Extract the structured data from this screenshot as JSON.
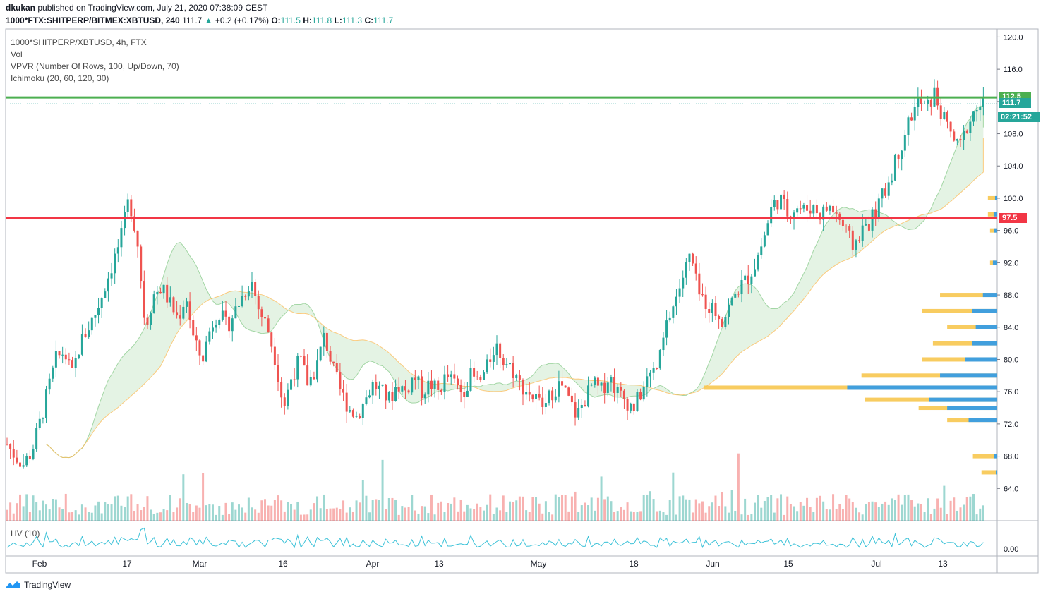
{
  "header": {
    "publisher": "dkukan",
    "published_text": "published on TradingView.com, July 21, 2020 07:38:09 CEST",
    "symbol": "1000*FTX:SHITPERP/BITMEX:XBTUSD, 240",
    "last": "111.7",
    "change": "+0.2 (+0.17%)",
    "o_label": "O:",
    "o_value": "111.5",
    "h_label": "H:",
    "h_value": "111.8",
    "l_label": "L:",
    "l_value": "111.3",
    "c_label": "C:",
    "c_value": "111.7"
  },
  "legend": {
    "title": "1000*SHITPERP/XBTUSD, 4h, FTX",
    "vol": "Vol",
    "vpvr": "VPVR (Number Of Rows, 100, Up/Down, 70)",
    "ichimoku": "Ichimoku (20, 60, 120, 30)"
  },
  "hv_label": "HV (10)",
  "price_tags": {
    "green_level": "112.5",
    "last_price": "111.7",
    "countdown": "02:21:52",
    "red_level": "97.5"
  },
  "colors": {
    "up": "#26a69a",
    "down": "#ef5350",
    "green_line": "#4caf50",
    "red_line": "#f23645",
    "countdown_bg": "#26a69a",
    "hv_line": "#3cc2d8",
    "vp_up": "#2196f3",
    "vp_down": "#f7c344"
  },
  "footer": {
    "brand": "TradingView"
  },
  "chart_data": {
    "type": "candlestick",
    "y_axis": {
      "ticks": [
        "120.0",
        "116.0",
        "112.0",
        "108.0",
        "104.0",
        "100.0",
        "96.0",
        "92.0",
        "88.0",
        "84.0",
        "80.0",
        "76.0",
        "72.0",
        "68.0",
        "64.0"
      ],
      "range": [
        60.0,
        121.0
      ]
    },
    "hv_axis": {
      "ticks": [
        "0.00"
      ]
    },
    "x_axis": {
      "ticks": [
        "Feb",
        "17",
        "Mar",
        "16",
        "Apr",
        "13",
        "May",
        "18",
        "Jun",
        "15",
        "Jul",
        "13"
      ]
    },
    "horizontal_levels": [
      {
        "value": 112.5,
        "color": "#4caf50"
      },
      {
        "value": 97.5,
        "color": "#f23645"
      }
    ],
    "price_path": [
      [
        0,
        69.5
      ],
      [
        1,
        68.0
      ],
      [
        2,
        67.0
      ],
      [
        3,
        68.5
      ],
      [
        4,
        72
      ],
      [
        5,
        76
      ],
      [
        6,
        80
      ],
      [
        7,
        81
      ],
      [
        8,
        78
      ],
      [
        9,
        82
      ],
      [
        10,
        84
      ],
      [
        11,
        86
      ],
      [
        12,
        89
      ],
      [
        13,
        92
      ],
      [
        14,
        95
      ],
      [
        15,
        100
      ],
      [
        16,
        95
      ],
      [
        17,
        84
      ],
      [
        18,
        88
      ],
      [
        19,
        89
      ],
      [
        20,
        87
      ],
      [
        21,
        85
      ],
      [
        22,
        88
      ],
      [
        23,
        82
      ],
      [
        24,
        80
      ],
      [
        25,
        84
      ],
      [
        26,
        86
      ],
      [
        27,
        84
      ],
      [
        28,
        86
      ],
      [
        29,
        88
      ],
      [
        30,
        90
      ],
      [
        31,
        86
      ],
      [
        32,
        84
      ],
      [
        33,
        80
      ],
      [
        34,
        74
      ],
      [
        35,
        78
      ],
      [
        36,
        80
      ],
      [
        37,
        77
      ],
      [
        38,
        79
      ],
      [
        39,
        83
      ],
      [
        40,
        79
      ],
      [
        41,
        76
      ],
      [
        42,
        74
      ],
      [
        43,
        73
      ],
      [
        44,
        75
      ],
      [
        45,
        77
      ],
      [
        46,
        76
      ],
      [
        47,
        75
      ],
      [
        48,
        77
      ],
      [
        49,
        76
      ],
      [
        50,
        78
      ],
      [
        51,
        76
      ],
      [
        52,
        77
      ],
      [
        53,
        76
      ],
      [
        54,
        78
      ],
      [
        55,
        77
      ],
      [
        56,
        76
      ],
      [
        57,
        78
      ],
      [
        58,
        77
      ],
      [
        59,
        79
      ],
      [
        60,
        82
      ],
      [
        61,
        80
      ],
      [
        62,
        79
      ],
      [
        63,
        77
      ],
      [
        64,
        76
      ],
      [
        65,
        75
      ],
      [
        66,
        74
      ],
      [
        67,
        76
      ],
      [
        68,
        77
      ],
      [
        69,
        75
      ],
      [
        70,
        73
      ],
      [
        71,
        75
      ],
      [
        72,
        77
      ],
      [
        73,
        76
      ],
      [
        74,
        78
      ],
      [
        75,
        76
      ],
      [
        76,
        75
      ],
      [
        77,
        74
      ],
      [
        78,
        76
      ],
      [
        79,
        78
      ],
      [
        80,
        79
      ],
      [
        81,
        84
      ],
      [
        82,
        87
      ],
      [
        83,
        90
      ],
      [
        84,
        93
      ],
      [
        85,
        88
      ],
      [
        86,
        87
      ],
      [
        87,
        86
      ],
      [
        88,
        85
      ],
      [
        89,
        87
      ],
      [
        90,
        89
      ],
      [
        91,
        90
      ],
      [
        92,
        92
      ],
      [
        93,
        95
      ],
      [
        94,
        99
      ],
      [
        95,
        100
      ],
      [
        96,
        98
      ],
      [
        97,
        99
      ],
      [
        98,
        98.5
      ],
      [
        99,
        99
      ],
      [
        100,
        98
      ],
      [
        101,
        99
      ],
      [
        102,
        98
      ],
      [
        103,
        96
      ],
      [
        104,
        94
      ],
      [
        105,
        96
      ],
      [
        106,
        97
      ],
      [
        107,
        99
      ],
      [
        108,
        101
      ],
      [
        109,
        104
      ],
      [
        110,
        107
      ],
      [
        111,
        110
      ],
      [
        112,
        112
      ],
      [
        113,
        111
      ],
      [
        114,
        113
      ],
      [
        115,
        110
      ],
      [
        116,
        108
      ],
      [
        117,
        106
      ],
      [
        118,
        109
      ],
      [
        119,
        111
      ],
      [
        120,
        111.7
      ]
    ],
    "volume_profile_rows": [
      {
        "price": 100.0,
        "up": 3,
        "down": 10
      },
      {
        "price": 98.0,
        "up": 5,
        "down": 8
      },
      {
        "price": 96.0,
        "up": 4,
        "down": 6
      },
      {
        "price": 92.0,
        "up": 6,
        "down": 4
      },
      {
        "price": 88.0,
        "up": 20,
        "down": 60
      },
      {
        "price": 86.0,
        "up": 35,
        "down": 70
      },
      {
        "price": 84.0,
        "up": 30,
        "down": 40
      },
      {
        "price": 82.0,
        "up": 35,
        "down": 55
      },
      {
        "price": 80.0,
        "up": 45,
        "down": 60
      },
      {
        "price": 78.0,
        "up": 80,
        "down": 110
      },
      {
        "price": 76.5,
        "up": 210,
        "down": 200
      },
      {
        "price": 75.0,
        "up": 95,
        "down": 90
      },
      {
        "price": 74.0,
        "up": 70,
        "down": 40
      },
      {
        "price": 72.5,
        "up": 40,
        "down": 30
      },
      {
        "price": 68.0,
        "up": 4,
        "down": 30
      },
      {
        "price": 66.0,
        "up": 2,
        "down": 20
      }
    ]
  }
}
